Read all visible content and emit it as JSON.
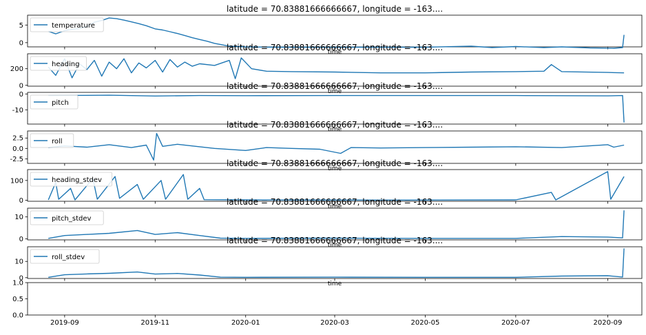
{
  "chart_data": {
    "type": "line",
    "color": "#1f77b4",
    "x_tick_labels": [
      "2019-09",
      "2019-11",
      "2020-01",
      "2020-03",
      "2020-05",
      "2020-07",
      "2020-09"
    ],
    "x_tick_dates": [
      "2019-09-01",
      "2019-11-01",
      "2020-01-01",
      "2020-03-01",
      "2020-05-01",
      "2020-07-01",
      "2020-09-01"
    ],
    "xlim": [
      "2019-08-07",
      "2020-09-24"
    ],
    "panels": [
      {
        "title": "latitude = 70.83881666666667, longitude = -163....",
        "xlabel": "time",
        "legend": "temperature",
        "ylim": [
          -1.2,
          7.8
        ],
        "yticks": [
          0,
          5
        ],
        "points": [
          [
            "2019-08-21",
            3.2
          ],
          [
            "2019-08-26",
            2.5
          ],
          [
            "2019-09-01",
            3.4
          ],
          [
            "2019-09-06",
            3.8
          ],
          [
            "2019-09-11",
            4.0
          ],
          [
            "2019-09-16",
            4.6
          ],
          [
            "2019-09-21",
            5.8
          ],
          [
            "2019-09-26",
            6.3
          ],
          [
            "2019-10-01",
            7.0
          ],
          [
            "2019-10-06",
            6.8
          ],
          [
            "2019-10-11",
            6.4
          ],
          [
            "2019-10-16",
            5.9
          ],
          [
            "2019-10-21",
            5.4
          ],
          [
            "2019-10-26",
            4.8
          ],
          [
            "2019-11-01",
            3.9
          ],
          [
            "2019-11-06",
            3.6
          ],
          [
            "2019-11-11",
            3.1
          ],
          [
            "2019-11-16",
            2.6
          ],
          [
            "2019-11-21",
            2.0
          ],
          [
            "2019-11-26",
            1.4
          ],
          [
            "2019-12-01",
            0.9
          ],
          [
            "2019-12-06",
            0.4
          ],
          [
            "2019-12-11",
            -0.2
          ],
          [
            "2019-12-16",
            -0.6
          ],
          [
            "2019-12-21",
            -1.0
          ],
          [
            "2020-01-01",
            -1.2
          ],
          [
            "2020-01-20",
            -1.3
          ],
          [
            "2020-02-10",
            -1.3
          ],
          [
            "2020-03-01",
            -1.3
          ],
          [
            "2020-04-01",
            -1.3
          ],
          [
            "2020-05-01",
            -1.3
          ],
          [
            "2020-06-01",
            -1.0
          ],
          [
            "2020-06-15",
            -1.4
          ],
          [
            "2020-07-01",
            -1.1
          ],
          [
            "2020-07-20",
            -1.4
          ],
          [
            "2020-08-01",
            -1.2
          ],
          [
            "2020-08-20",
            -1.5
          ],
          [
            "2020-09-05",
            -1.6
          ],
          [
            "2020-09-11",
            -1.4
          ],
          [
            "2020-09-12",
            2.2
          ]
        ]
      },
      {
        "title": "latitude = 70.83881666666667, longitude = -163....",
        "xlabel": "time",
        "legend": "heading",
        "ylim": [
          -10,
          380
        ],
        "yticks": [
          0,
          200
        ],
        "points": [
          [
            "2019-08-21",
            220
          ],
          [
            "2019-08-26",
            120
          ],
          [
            "2019-09-01",
            320
          ],
          [
            "2019-09-06",
            90
          ],
          [
            "2019-09-11",
            260
          ],
          [
            "2019-09-16",
            190
          ],
          [
            "2019-09-21",
            300
          ],
          [
            "2019-09-26",
            110
          ],
          [
            "2019-10-01",
            280
          ],
          [
            "2019-10-06",
            200
          ],
          [
            "2019-10-11",
            320
          ],
          [
            "2019-10-16",
            150
          ],
          [
            "2019-10-21",
            270
          ],
          [
            "2019-10-26",
            210
          ],
          [
            "2019-11-01",
            300
          ],
          [
            "2019-11-06",
            160
          ],
          [
            "2019-11-11",
            310
          ],
          [
            "2019-11-16",
            220
          ],
          [
            "2019-11-21",
            280
          ],
          [
            "2019-11-26",
            230
          ],
          [
            "2019-12-01",
            260
          ],
          [
            "2019-12-11",
            240
          ],
          [
            "2019-12-21",
            300
          ],
          [
            "2019-12-25",
            80
          ],
          [
            "2019-12-29",
            330
          ],
          [
            "2020-01-05",
            200
          ],
          [
            "2020-01-15",
            170
          ],
          [
            "2020-02-01",
            165
          ],
          [
            "2020-03-01",
            160
          ],
          [
            "2020-04-01",
            150
          ],
          [
            "2020-05-01",
            150
          ],
          [
            "2020-06-01",
            160
          ],
          [
            "2020-07-01",
            165
          ],
          [
            "2020-07-20",
            170
          ],
          [
            "2020-07-25",
            250
          ],
          [
            "2020-08-01",
            165
          ],
          [
            "2020-09-01",
            155
          ],
          [
            "2020-09-12",
            150
          ]
        ]
      },
      {
        "title": "latitude = 70.83881666666667, longitude = -163....",
        "xlabel": "time",
        "legend": "pitch",
        "ylim": [
          -19,
          1
        ],
        "yticks": [
          -10,
          0
        ],
        "points": [
          [
            "2019-08-21",
            -1.0
          ],
          [
            "2019-10-01",
            -0.8
          ],
          [
            "2019-11-01",
            -1.3
          ],
          [
            "2019-12-01",
            -1.0
          ],
          [
            "2020-01-01",
            -1.1
          ],
          [
            "2020-03-01",
            -1.0
          ],
          [
            "2020-05-01",
            -1.0
          ],
          [
            "2020-07-01",
            -1.0
          ],
          [
            "2020-09-01",
            -1.2
          ],
          [
            "2020-09-11",
            -1.0
          ],
          [
            "2020-09-12",
            -18.0
          ]
        ]
      },
      {
        "title": "latitude = 70.83881666666667, longitude = -163....",
        "xlabel": "time",
        "legend": "roll",
        "ylim": [
          -3.6,
          4.2
        ],
        "yticks": [
          -2.5,
          0.0,
          2.5
        ],
        "points": [
          [
            "2019-08-21",
            0.2
          ],
          [
            "2019-09-01",
            0.6
          ],
          [
            "2019-09-16",
            0.3
          ],
          [
            "2019-10-01",
            0.9
          ],
          [
            "2019-10-16",
            0.2
          ],
          [
            "2019-10-26",
            0.8
          ],
          [
            "2019-10-31",
            -2.8
          ],
          [
            "2019-11-02",
            3.6
          ],
          [
            "2019-11-06",
            0.5
          ],
          [
            "2019-11-16",
            1.0
          ],
          [
            "2019-12-01",
            0.4
          ],
          [
            "2019-12-11",
            0.0
          ],
          [
            "2020-01-01",
            -0.5
          ],
          [
            "2020-01-15",
            0.2
          ],
          [
            "2020-02-01",
            0.0
          ],
          [
            "2020-02-20",
            -0.2
          ],
          [
            "2020-03-05",
            -1.2
          ],
          [
            "2020-03-12",
            0.2
          ],
          [
            "2020-04-01",
            0.1
          ],
          [
            "2020-05-01",
            0.2
          ],
          [
            "2020-06-01",
            0.3
          ],
          [
            "2020-07-01",
            0.4
          ],
          [
            "2020-08-01",
            0.2
          ],
          [
            "2020-09-01",
            0.9
          ],
          [
            "2020-09-05",
            0.3
          ],
          [
            "2020-09-12",
            0.8
          ]
        ]
      },
      {
        "title": "latitude = 70.83881666666667, longitude = -163....",
        "xlabel": "time",
        "legend": "heading_stdev",
        "ylim": [
          -5,
          155
        ],
        "yticks": [
          0,
          100
        ],
        "points": [
          [
            "2019-08-21",
            2
          ],
          [
            "2019-08-26",
            90
          ],
          [
            "2019-08-28",
            5
          ],
          [
            "2019-09-05",
            60
          ],
          [
            "2019-09-08",
            2
          ],
          [
            "2019-09-20",
            110
          ],
          [
            "2019-09-23",
            5
          ],
          [
            "2019-10-05",
            120
          ],
          [
            "2019-10-08",
            10
          ],
          [
            "2019-10-20",
            80
          ],
          [
            "2019-10-24",
            5
          ],
          [
            "2019-11-05",
            100
          ],
          [
            "2019-11-08",
            5
          ],
          [
            "2019-11-20",
            130
          ],
          [
            "2019-11-23",
            5
          ],
          [
            "2019-12-01",
            60
          ],
          [
            "2019-12-04",
            3
          ],
          [
            "2020-01-01",
            2
          ],
          [
            "2020-04-01",
            1
          ],
          [
            "2020-07-01",
            2
          ],
          [
            "2020-07-25",
            40
          ],
          [
            "2020-07-28",
            2
          ],
          [
            "2020-09-01",
            145
          ],
          [
            "2020-09-03",
            5
          ],
          [
            "2020-09-12",
            120
          ]
        ]
      },
      {
        "title": "latitude = 70.83881666666667, longitude = -163....",
        "xlabel": "time",
        "legend": "pitch_stdev",
        "ylim": [
          -0.5,
          14
        ],
        "yticks": [
          0,
          10
        ],
        "points": [
          [
            "2019-08-21",
            0.2
          ],
          [
            "2019-09-01",
            1.5
          ],
          [
            "2019-09-16",
            2.0
          ],
          [
            "2019-10-01",
            2.5
          ],
          [
            "2019-10-20",
            3.8
          ],
          [
            "2019-11-01",
            2.0
          ],
          [
            "2019-11-16",
            2.8
          ],
          [
            "2019-12-01",
            1.5
          ],
          [
            "2019-12-15",
            0.3
          ],
          [
            "2020-01-01",
            0.2
          ],
          [
            "2020-03-01",
            0.3
          ],
          [
            "2020-05-01",
            0.2
          ],
          [
            "2020-07-01",
            0.2
          ],
          [
            "2020-08-01",
            1.0
          ],
          [
            "2020-09-01",
            0.8
          ],
          [
            "2020-09-11",
            0.4
          ],
          [
            "2020-09-12",
            13.0
          ]
        ]
      },
      {
        "title": "latitude = 70.83881666666667, longitude = -163....",
        "xlabel": "time",
        "legend": "roll_stdev",
        "ylim": [
          -0.5,
          19
        ],
        "yticks": [
          0,
          10
        ],
        "points": [
          [
            "2019-08-21",
            0.2
          ],
          [
            "2019-09-01",
            1.8
          ],
          [
            "2019-09-16",
            2.3
          ],
          [
            "2019-10-01",
            2.7
          ],
          [
            "2019-10-20",
            3.5
          ],
          [
            "2019-11-01",
            2.2
          ],
          [
            "2019-11-16",
            2.6
          ],
          [
            "2019-12-01",
            1.6
          ],
          [
            "2019-12-15",
            0.3
          ],
          [
            "2020-01-01",
            0.2
          ],
          [
            "2020-03-01",
            0.3
          ],
          [
            "2020-05-01",
            0.2
          ],
          [
            "2020-07-01",
            0.2
          ],
          [
            "2020-08-01",
            1.0
          ],
          [
            "2020-09-01",
            1.2
          ],
          [
            "2020-09-11",
            0.4
          ],
          [
            "2020-09-12",
            18.0
          ]
        ]
      },
      {
        "title": "",
        "xlabel": "",
        "legend": "",
        "ylim": [
          0.0,
          1.0
        ],
        "yticks": [
          0.0,
          0.5,
          1.0
        ],
        "points": []
      }
    ]
  }
}
